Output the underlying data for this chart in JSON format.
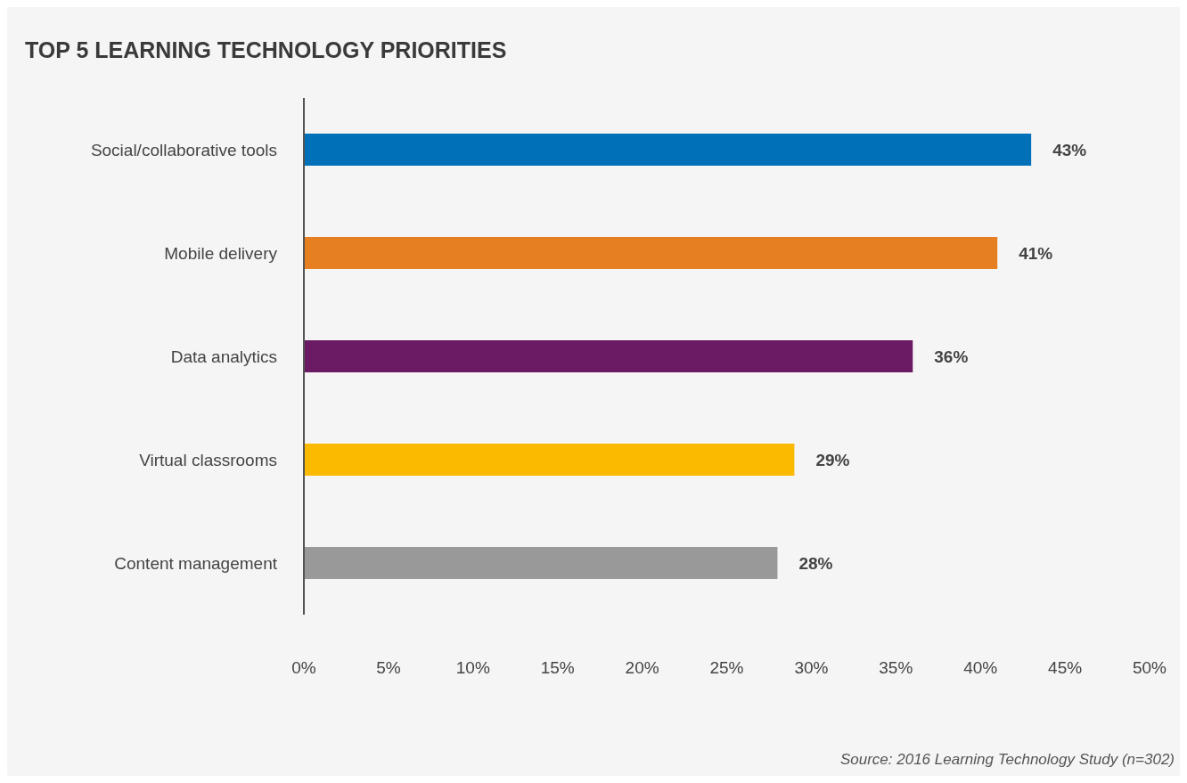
{
  "chart_data": {
    "type": "bar",
    "orientation": "horizontal",
    "title": "TOP 5 LEARNING TECHNOLOGY PRIORITIES",
    "categories": [
      "Social/collaborative tools",
      "Mobile delivery",
      "Data analytics",
      "Virtual classrooms",
      "Content management"
    ],
    "values": [
      43,
      41,
      36,
      29,
      28
    ],
    "colors": [
      "#0070b8",
      "#e67e22",
      "#6b1a64",
      "#fbb900",
      "#999999"
    ],
    "value_labels": [
      "43%",
      "41%",
      "36%",
      "29%",
      "28%"
    ],
    "xlim": [
      0,
      50
    ],
    "xticks": [
      {
        "value": 0,
        "label": "0%"
      },
      {
        "value": 5,
        "label": "5%"
      },
      {
        "value": 10,
        "label": "10%"
      },
      {
        "value": 15,
        "label": "15%"
      },
      {
        "value": 20,
        "label": "20%"
      },
      {
        "value": 25,
        "label": "25%"
      },
      {
        "value": 30,
        "label": "30%"
      },
      {
        "value": 35,
        "label": "35%"
      },
      {
        "value": 40,
        "label": "40%"
      },
      {
        "value": 45,
        "label": "45%"
      },
      {
        "value": 50,
        "label": "50%"
      }
    ],
    "annotations": [
      "Source: 2016 Learning Technology Study (n=302)"
    ]
  }
}
